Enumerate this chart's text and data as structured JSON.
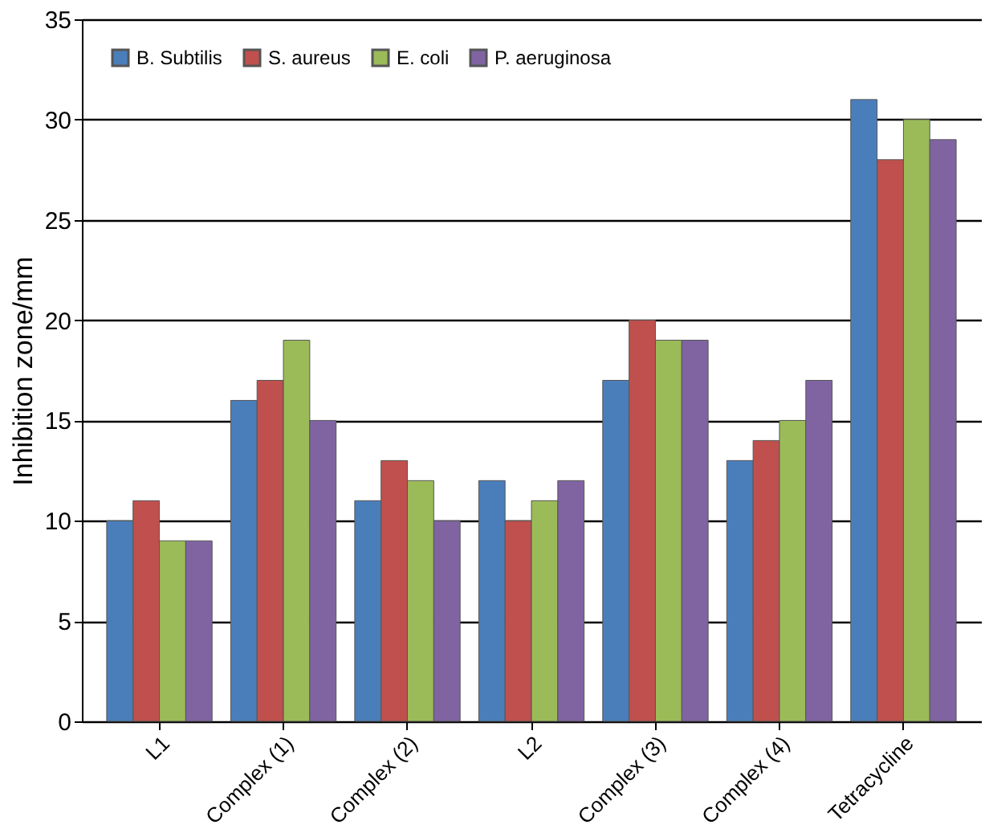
{
  "chart_data": {
    "type": "bar",
    "ylabel": "Inhibition zone/mm",
    "categories": [
      "L1",
      "Complex (1)",
      "Complex (2)",
      "L2",
      "Complex (3)",
      "Complex (4)",
      "Tetracycline"
    ],
    "series": [
      {
        "name": "B. Subtilis",
        "color": "#4a7ebb",
        "values": [
          10,
          16,
          11,
          12,
          17,
          13,
          31
        ]
      },
      {
        "name": "S. aureus",
        "color": "#c0504d",
        "values": [
          11,
          17,
          13,
          10,
          20,
          14,
          28
        ]
      },
      {
        "name": "E. coli",
        "color": "#9bbb59",
        "values": [
          9,
          19,
          12,
          11,
          19,
          15,
          30
        ]
      },
      {
        "name": "P. aeruginosa",
        "color": "#8064a2",
        "values": [
          9,
          15,
          10,
          12,
          19,
          17,
          29
        ]
      }
    ],
    "ylim": [
      0,
      35
    ],
    "yticks": [
      0,
      5,
      10,
      15,
      20,
      25,
      30,
      35
    ],
    "grid": "y",
    "legend": "top left"
  }
}
